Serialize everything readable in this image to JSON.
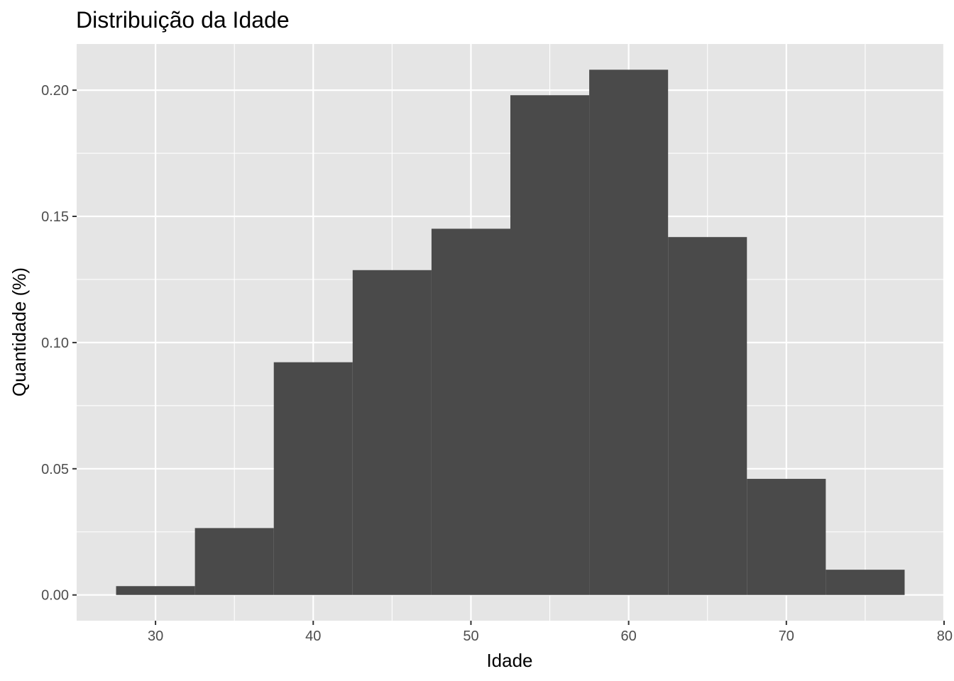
{
  "chart_data": {
    "type": "bar",
    "title": "Distribuição da Idade",
    "xlabel": "Idade",
    "ylabel": "Quantidade (%)",
    "bins": [
      {
        "x0": 27.5,
        "x1": 32.5,
        "value": 0.0035
      },
      {
        "x0": 32.5,
        "x1": 37.5,
        "value": 0.0265
      },
      {
        "x0": 37.5,
        "x1": 42.5,
        "value": 0.0922
      },
      {
        "x0": 42.5,
        "x1": 47.5,
        "value": 0.1287
      },
      {
        "x0": 47.5,
        "x1": 52.5,
        "value": 0.1451
      },
      {
        "x0": 52.5,
        "x1": 57.5,
        "value": 0.198
      },
      {
        "x0": 57.5,
        "x1": 62.5,
        "value": 0.2081
      },
      {
        "x0": 62.5,
        "x1": 67.5,
        "value": 0.1418
      },
      {
        "x0": 67.5,
        "x1": 72.5,
        "value": 0.046
      },
      {
        "x0": 72.5,
        "x1": 77.5,
        "value": 0.01
      }
    ],
    "xlim": [
      25,
      80
    ],
    "ylim": [
      -0.0102,
      0.2183
    ],
    "x_ticks": [
      {
        "value": 30,
        "label": "30"
      },
      {
        "value": 40,
        "label": "40"
      },
      {
        "value": 50,
        "label": "50"
      },
      {
        "value": 60,
        "label": "60"
      },
      {
        "value": 70,
        "label": "70"
      },
      {
        "value": 80,
        "label": "80"
      }
    ],
    "y_ticks": [
      {
        "value": 0.0,
        "label": "0.00"
      },
      {
        "value": 0.05,
        "label": "0.05"
      },
      {
        "value": 0.1,
        "label": "0.10"
      },
      {
        "value": 0.15,
        "label": "0.15"
      },
      {
        "value": 0.2,
        "label": "0.20"
      }
    ],
    "grid": true,
    "colors": {
      "panel": "#e5e5e5",
      "grid_major": "#ffffff",
      "bar_fill": "#4a4a4a",
      "tick": "#333333"
    }
  }
}
